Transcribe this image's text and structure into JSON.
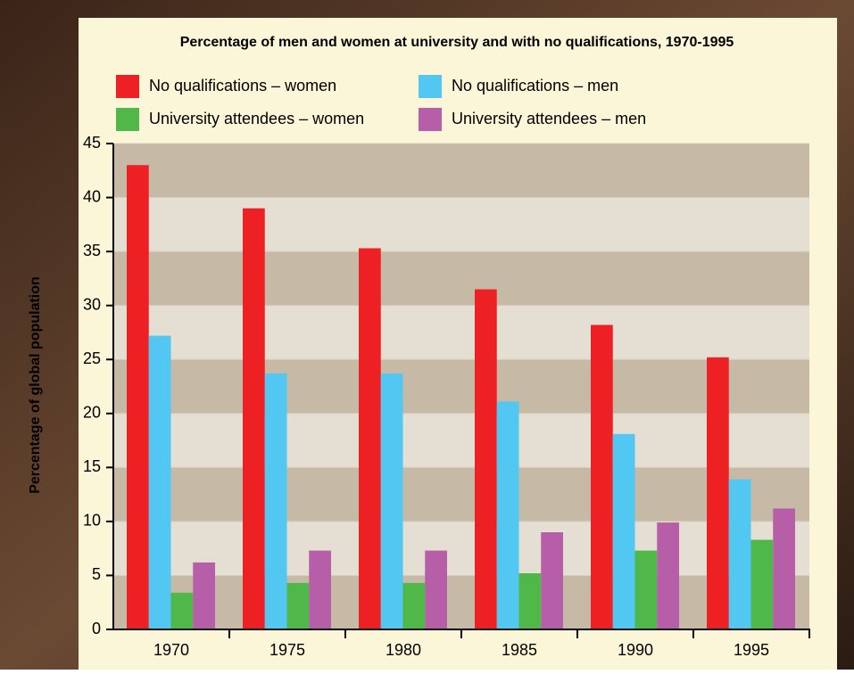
{
  "chart_data": {
    "type": "bar",
    "title": "Percentage of men and women at university and with no qualifications, 1970-1995",
    "y_label": "Percentage of global population",
    "categories": [
      "1970",
      "1975",
      "1980",
      "1985",
      "1990",
      "1995"
    ],
    "series": [
      {
        "name": "No qualifications – women",
        "color": "#ed2024",
        "values": [
          43,
          39,
          35.3,
          31.5,
          28.2,
          25.2
        ]
      },
      {
        "name": "No qualifications – men",
        "color": "#52c7f1",
        "values": [
          27.2,
          23.7,
          23.7,
          21.1,
          18.1,
          13.9
        ]
      },
      {
        "name": "University attendees – women",
        "color": "#4fb848",
        "values": [
          3.4,
          4.3,
          4.3,
          5.2,
          7.3,
          8.3
        ]
      },
      {
        "name": "University attendees – men",
        "color": "#b65fa8",
        "values": [
          6.2,
          7.3,
          7.3,
          9.0,
          9.9,
          11.2
        ]
      }
    ],
    "ylim": [
      0,
      45
    ],
    "yticks": [
      0,
      5,
      10,
      15,
      20,
      25,
      30,
      35,
      40,
      45
    ],
    "grid": true,
    "legend": "top"
  }
}
